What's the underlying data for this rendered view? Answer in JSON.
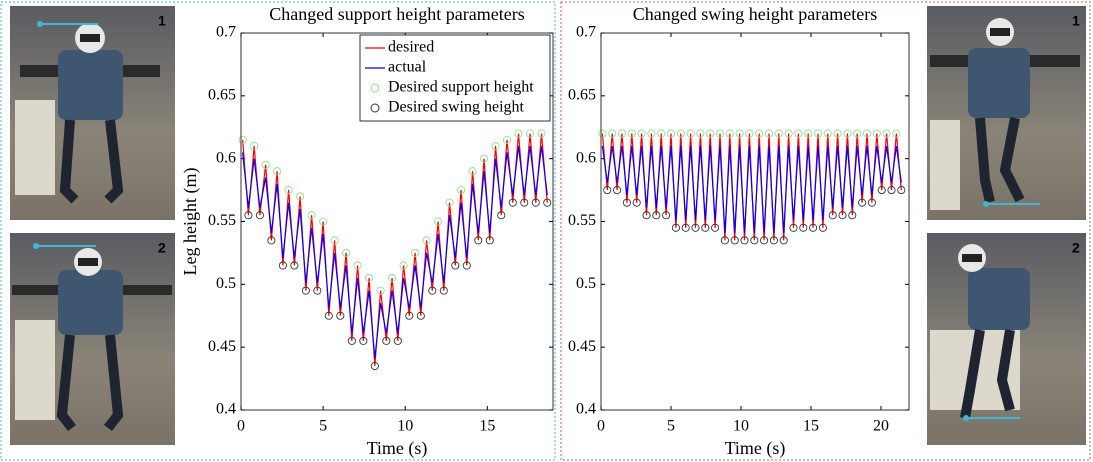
{
  "chart_data": [
    {
      "type": "line",
      "title": "Changed support height parameters",
      "xlabel": "Time (s)",
      "ylabel": "Leg height (m)",
      "xlim": [
        0,
        19
      ],
      "xticks": [
        0,
        5,
        10,
        15
      ],
      "ylim": [
        0.4,
        0.7
      ],
      "yticks": [
        0.4,
        0.45,
        0.5,
        0.55,
        0.6,
        0.65,
        0.7
      ],
      "legend": "upper right",
      "series": [
        {
          "name": "desired",
          "color": "#ff0000",
          "style": "line",
          "x": [
            0.1,
            0.45,
            0.8,
            1.15,
            1.5,
            1.85,
            2.2,
            2.55,
            2.9,
            3.25,
            3.6,
            3.95,
            4.3,
            4.65,
            5,
            5.35,
            5.7,
            6.05,
            6.4,
            6.75,
            7.1,
            7.45,
            7.8,
            8.15,
            8.5,
            8.85,
            9.2,
            9.55,
            9.9,
            10.25,
            10.6,
            10.95,
            11.3,
            11.65,
            12,
            12.35,
            12.7,
            13.05,
            13.4,
            13.75,
            14.1,
            14.45,
            14.8,
            15.15,
            15.5,
            15.85,
            16.2,
            16.55,
            16.9,
            17.25,
            17.6,
            17.95,
            18.3,
            18.65
          ],
          "values": [
            0.615,
            0.555,
            0.61,
            0.555,
            0.595,
            0.535,
            0.59,
            0.515,
            0.575,
            0.515,
            0.57,
            0.495,
            0.555,
            0.495,
            0.55,
            0.475,
            0.535,
            0.475,
            0.525,
            0.455,
            0.515,
            0.455,
            0.505,
            0.435,
            0.495,
            0.455,
            0.505,
            0.455,
            0.515,
            0.475,
            0.525,
            0.475,
            0.535,
            0.495,
            0.55,
            0.495,
            0.565,
            0.515,
            0.575,
            0.515,
            0.59,
            0.535,
            0.6,
            0.535,
            0.61,
            0.555,
            0.615,
            0.565,
            0.62,
            0.565,
            0.62,
            0.565,
            0.62,
            0.565
          ]
        },
        {
          "name": "actual",
          "color": "#0000ff",
          "style": "line",
          "x": [
            0.1,
            0.45,
            0.8,
            1.15,
            1.5,
            1.85,
            2.2,
            2.55,
            2.9,
            3.25,
            3.6,
            3.95,
            4.3,
            4.65,
            5,
            5.35,
            5.7,
            6.05,
            6.4,
            6.75,
            7.1,
            7.45,
            7.8,
            8.15,
            8.5,
            8.85,
            9.2,
            9.55,
            9.9,
            10.25,
            10.6,
            10.95,
            11.3,
            11.65,
            12,
            12.35,
            12.7,
            13.05,
            13.4,
            13.75,
            14.1,
            14.45,
            14.8,
            15.15,
            15.5,
            15.85,
            16.2,
            16.55,
            16.9,
            17.25,
            17.6,
            17.95,
            18.3,
            18.65
          ],
          "values": [
            0.605,
            0.561,
            0.6,
            0.561,
            0.585,
            0.541,
            0.58,
            0.521,
            0.565,
            0.521,
            0.56,
            0.501,
            0.545,
            0.501,
            0.54,
            0.481,
            0.525,
            0.481,
            0.515,
            0.461,
            0.505,
            0.461,
            0.495,
            0.441,
            0.485,
            0.461,
            0.495,
            0.461,
            0.505,
            0.481,
            0.515,
            0.481,
            0.525,
            0.501,
            0.54,
            0.501,
            0.555,
            0.521,
            0.565,
            0.521,
            0.58,
            0.541,
            0.59,
            0.541,
            0.6,
            0.561,
            0.605,
            0.571,
            0.61,
            0.571,
            0.61,
            0.571,
            0.61,
            0.571
          ]
        },
        {
          "name": "Desired support height",
          "color": "#8fe08f",
          "style": "marker",
          "x": [
            0.1,
            0.8,
            1.5,
            2.2,
            2.9,
            3.6,
            4.3,
            5,
            5.7,
            6.4,
            7.1,
            7.8,
            8.5,
            9.2,
            9.9,
            10.6,
            11.3,
            12,
            12.7,
            13.4,
            14.1,
            14.8,
            15.5,
            16.2,
            16.9,
            17.6,
            18.3
          ],
          "values": [
            0.615,
            0.61,
            0.595,
            0.59,
            0.575,
            0.57,
            0.555,
            0.55,
            0.535,
            0.525,
            0.515,
            0.505,
            0.495,
            0.505,
            0.515,
            0.525,
            0.535,
            0.55,
            0.565,
            0.575,
            0.59,
            0.6,
            0.61,
            0.615,
            0.62,
            0.62,
            0.62
          ]
        },
        {
          "name": "Desired swing height",
          "color": "#333333",
          "style": "marker",
          "x": [
            0.45,
            1.15,
            1.85,
            2.55,
            3.25,
            3.95,
            4.65,
            5.35,
            6.05,
            6.75,
            7.45,
            8.15,
            8.85,
            9.55,
            10.25,
            10.95,
            11.65,
            12.35,
            13.05,
            13.75,
            14.45,
            15.15,
            15.85,
            16.55,
            17.25,
            17.95,
            18.65
          ],
          "values": [
            0.555,
            0.555,
            0.535,
            0.515,
            0.515,
            0.495,
            0.495,
            0.475,
            0.475,
            0.455,
            0.455,
            0.435,
            0.455,
            0.455,
            0.475,
            0.475,
            0.495,
            0.495,
            0.515,
            0.515,
            0.535,
            0.535,
            0.555,
            0.565,
            0.565,
            0.565,
            0.565
          ]
        }
      ]
    },
    {
      "type": "line",
      "title": "Changed swing height parameters",
      "xlabel": "Time (s)",
      "xlim": [
        0,
        22
      ],
      "xticks": [
        0,
        5,
        10,
        15,
        20
      ],
      "ylim": [
        0.4,
        0.7
      ],
      "yticks": [
        0.4,
        0.45,
        0.5,
        0.55,
        0.6,
        0.65,
        0.7
      ],
      "series": [
        {
          "color": "#ff0000",
          "style": "line",
          "x": [
            0.1,
            0.45,
            0.8,
            1.15,
            1.5,
            1.85,
            2.2,
            2.55,
            2.9,
            3.25,
            3.6,
            3.95,
            4.3,
            4.65,
            5,
            5.35,
            5.7,
            6.05,
            6.4,
            6.75,
            7.1,
            7.45,
            7.8,
            8.15,
            8.5,
            8.85,
            9.2,
            9.55,
            9.9,
            10.25,
            10.6,
            10.95,
            11.3,
            11.65,
            12,
            12.35,
            12.7,
            13.05,
            13.4,
            13.75,
            14.1,
            14.45,
            14.8,
            15.15,
            15.5,
            15.85,
            16.2,
            16.55,
            16.9,
            17.25,
            17.6,
            17.95,
            18.3,
            18.65,
            19,
            19.35,
            19.7,
            20.05,
            20.4,
            20.75,
            21.1,
            21.45
          ],
          "values": [
            0.62,
            0.575,
            0.62,
            0.575,
            0.62,
            0.565,
            0.62,
            0.565,
            0.62,
            0.555,
            0.62,
            0.555,
            0.62,
            0.555,
            0.62,
            0.545,
            0.62,
            0.545,
            0.62,
            0.545,
            0.62,
            0.545,
            0.62,
            0.545,
            0.62,
            0.535,
            0.62,
            0.535,
            0.62,
            0.535,
            0.62,
            0.535,
            0.62,
            0.535,
            0.62,
            0.535,
            0.62,
            0.535,
            0.62,
            0.545,
            0.62,
            0.545,
            0.62,
            0.545,
            0.62,
            0.545,
            0.62,
            0.555,
            0.62,
            0.555,
            0.62,
            0.555,
            0.62,
            0.565,
            0.62,
            0.565,
            0.62,
            0.575,
            0.62,
            0.575,
            0.62,
            0.575
          ]
        },
        {
          "color": "#0000ff",
          "style": "line",
          "x": [
            0.1,
            0.45,
            0.8,
            1.15,
            1.5,
            1.85,
            2.2,
            2.55,
            2.9,
            3.25,
            3.6,
            3.95,
            4.3,
            4.65,
            5,
            5.35,
            5.7,
            6.05,
            6.4,
            6.75,
            7.1,
            7.45,
            7.8,
            8.15,
            8.5,
            8.85,
            9.2,
            9.55,
            9.9,
            10.25,
            10.6,
            10.95,
            11.3,
            11.65,
            12,
            12.35,
            12.7,
            13.05,
            13.4,
            13.75,
            14.1,
            14.45,
            14.8,
            15.15,
            15.5,
            15.85,
            16.2,
            16.55,
            16.9,
            17.25,
            17.6,
            17.95,
            18.3,
            18.65,
            19,
            19.35,
            19.7,
            20.05,
            20.4,
            20.75,
            21.1,
            21.45
          ],
          "values": [
            0.61,
            0.581,
            0.61,
            0.581,
            0.61,
            0.571,
            0.61,
            0.571,
            0.61,
            0.561,
            0.61,
            0.561,
            0.61,
            0.561,
            0.61,
            0.551,
            0.61,
            0.551,
            0.61,
            0.551,
            0.61,
            0.551,
            0.61,
            0.551,
            0.61,
            0.541,
            0.61,
            0.541,
            0.61,
            0.541,
            0.61,
            0.541,
            0.61,
            0.541,
            0.61,
            0.541,
            0.61,
            0.541,
            0.61,
            0.551,
            0.61,
            0.551,
            0.61,
            0.551,
            0.61,
            0.551,
            0.61,
            0.561,
            0.61,
            0.561,
            0.61,
            0.561,
            0.61,
            0.571,
            0.61,
            0.571,
            0.61,
            0.581,
            0.61,
            0.581,
            0.61,
            0.581
          ]
        },
        {
          "color": "#8fe08f",
          "style": "marker",
          "x": [
            0.1,
            0.8,
            1.5,
            2.2,
            2.9,
            3.6,
            4.3,
            5,
            5.7,
            6.4,
            7.1,
            7.8,
            8.5,
            9.2,
            9.9,
            10.6,
            11.3,
            12,
            12.7,
            13.4,
            14.1,
            14.8,
            15.5,
            16.2,
            16.9,
            17.6,
            18.3,
            19,
            19.7,
            20.4,
            21.1
          ],
          "values": [
            0.62,
            0.62,
            0.62,
            0.62,
            0.62,
            0.62,
            0.62,
            0.62,
            0.62,
            0.62,
            0.62,
            0.62,
            0.62,
            0.62,
            0.62,
            0.62,
            0.62,
            0.62,
            0.62,
            0.62,
            0.62,
            0.62,
            0.62,
            0.62,
            0.62,
            0.62,
            0.62,
            0.62,
            0.62,
            0.62,
            0.62
          ]
        },
        {
          "color": "#333333",
          "style": "marker",
          "x": [
            0.45,
            1.15,
            1.85,
            2.55,
            3.25,
            3.95,
            4.65,
            5.35,
            6.05,
            6.75,
            7.45,
            8.15,
            8.85,
            9.55,
            10.25,
            10.95,
            11.65,
            12.35,
            13.05,
            13.75,
            14.45,
            15.15,
            15.85,
            16.55,
            17.25,
            17.95,
            18.65,
            19.35,
            20.05,
            20.75,
            21.45
          ],
          "values": [
            0.575,
            0.575,
            0.565,
            0.565,
            0.555,
            0.555,
            0.555,
            0.545,
            0.545,
            0.545,
            0.545,
            0.545,
            0.535,
            0.535,
            0.535,
            0.535,
            0.535,
            0.535,
            0.535,
            0.545,
            0.545,
            0.545,
            0.545,
            0.555,
            0.555,
            0.555,
            0.565,
            0.565,
            0.575,
            0.575,
            0.575
          ]
        }
      ]
    }
  ],
  "photos": [
    {
      "label": "1"
    },
    {
      "label": "2"
    },
    {
      "label": "1"
    },
    {
      "label": "2"
    }
  ]
}
